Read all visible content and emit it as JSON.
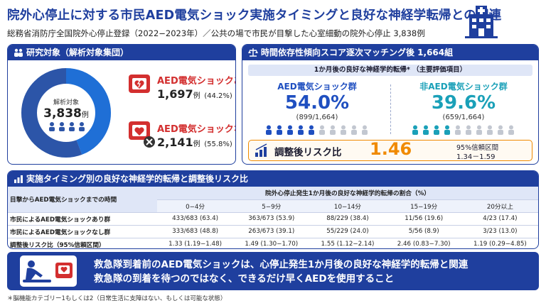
{
  "header": {
    "title": "院外心停止に対する市民AED電気ショック実施タイミングと良好な神経学転帰との関連",
    "subtitle": "総務省消防庁全国院外心停止登録（2022−2023年）／公共の場で市民が目撃した心室細動の院外心停止 3,838例",
    "icon": "hospital-icon"
  },
  "study_panel": {
    "heading": "研究対象（解析対象集団）",
    "center_label": "解析対象",
    "center_number": "3,838",
    "center_unit": "例",
    "aed_yes": {
      "label": "AED電気ショックあり",
      "count": "1,697",
      "unit": "例",
      "pct": "(44.2%)",
      "fraction": 0.442
    },
    "aed_no": {
      "label": "AED電気ショックなし",
      "count": "2,141",
      "unit": "例",
      "pct": "(55.8%)",
      "fraction": 0.558
    },
    "colors": {
      "aed_yes": "#1f6fd6",
      "aed_no": "#d32f2f",
      "ring_bg": "#cfe0f7"
    }
  },
  "match_panel": {
    "heading": "時間依存性傾向スコア逐次マッチング後 1,664組",
    "outcome_label": "1か月後の良好な神経学的転帰* （主要評価項目）",
    "aed_group": {
      "title": "AED電気ショック群",
      "pct": "54.0%",
      "frac": "(899/1,664)",
      "color": "#1f4fc0"
    },
    "non_aed_group": {
      "title": "非AED電気ショック群",
      "pct": "39.6%",
      "frac": "(659/1,664)",
      "color": "#1aa0b8"
    },
    "risk": {
      "label": "調整後リスク比",
      "value": "1.46",
      "ci_label": "95%信頼区間",
      "ci": "1.34－1.59",
      "value_color": "#f08a00"
    }
  },
  "timing_panel": {
    "heading": "実施タイミング別の良好な神経学的転帰と調整後リスク比",
    "row_header": "目撃からAED電気ショックまでの時間",
    "col_header": "院外心停止発生1か月後の良好な神経学的転帰の割合（%）",
    "columns": [
      "0−4分",
      "5−9分",
      "10−14分",
      "15−19分",
      "20分以上"
    ],
    "rows": [
      {
        "label": "市民によるAED電気ショックあり群",
        "cells": [
          "433/683 (63.4)",
          "363/673 (53.9)",
          "88/229 (38.4)",
          "11/56 (19.6)",
          "4/23 (17.4)"
        ]
      },
      {
        "label": "市民によるAED電気ショックなし群",
        "cells": [
          "333/683 (48.8)",
          "263/673 (39.1)",
          "55/229 (24.0)",
          "5/56 (8.9)",
          "3/23 (13.0)"
        ]
      },
      {
        "label": "調整後リスク比（95%信頼区間）",
        "cells": [
          "1.33 (1.19−1.48)",
          "1.49 (1.30−1.70)",
          "1.55 (1.12−2.14)",
          "2.46 (0.83−7.30)",
          "1.19 (0.29−4.85)"
        ]
      }
    ]
  },
  "banner": {
    "line1": "救急隊到着前のAED電気ショックは、心停止発生1か月後の良好な神経学的転帰と関連",
    "line2": "救急隊の到着を待つのではなく、できるだけ早くAEDを使用すること",
    "icon": "cpr-aed-icon"
  },
  "footnote": "＊脳機能カテゴリー1もしくは2（日常生活に支障はない、もしくは可能な状態）"
}
